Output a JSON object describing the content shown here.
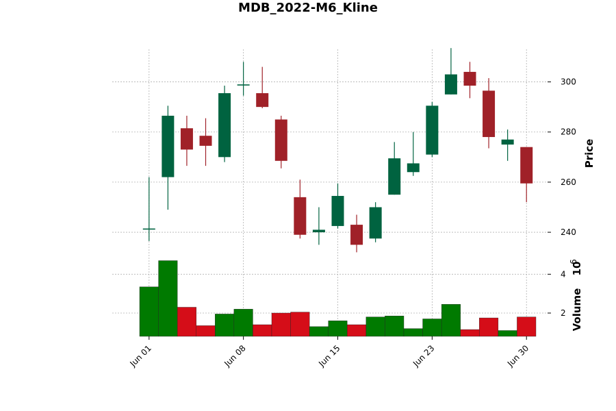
{
  "chart_data": {
    "type": "candlestick",
    "title": "MDB_2022-M6_Kline",
    "ylabel": "Price",
    "volume_label": "Volume",
    "volume_multiplier": "10",
    "volume_exponent": "6",
    "price_ylim": [
      231,
      313
    ],
    "price_ticks": [
      "240",
      "260",
      "280",
      "300"
    ],
    "volume_ylim": [
      0.8,
      5.0
    ],
    "volume_ticks": [
      "2",
      "4"
    ],
    "x_tick_labels": [
      {
        "index": 0,
        "label": "Jun 01"
      },
      {
        "index": 5,
        "label": "Jun 08"
      },
      {
        "index": 10,
        "label": "Jun 15"
      },
      {
        "index": 15,
        "label": "Jun 23"
      },
      {
        "index": 20,
        "label": "Jun 30"
      }
    ],
    "colors": {
      "up_candle": "#006340",
      "down_candle": "#A02128",
      "up_volume": "#007a00",
      "down_volume": "#d50d18"
    },
    "candles": [
      {
        "open": 241.5,
        "high": 262.0,
        "low": 236.5,
        "close": 241.5,
        "volume": 3.35
      },
      {
        "open": 262.0,
        "high": 290.5,
        "low": 249.0,
        "close": 286.5,
        "volume": 4.7
      },
      {
        "open": 281.5,
        "high": 286.5,
        "low": 266.5,
        "close": 273.0,
        "volume": 2.3
      },
      {
        "open": 278.5,
        "high": 285.5,
        "low": 266.5,
        "close": 274.5,
        "volume": 1.35
      },
      {
        "open": 270.0,
        "high": 298.5,
        "low": 268.0,
        "close": 295.5,
        "volume": 1.95
      },
      {
        "open": 299.0,
        "high": 308.0,
        "low": 294.5,
        "close": 299.0,
        "volume": 2.2
      },
      {
        "open": 295.5,
        "high": 306.0,
        "low": 289.5,
        "close": 290.0,
        "volume": 1.4
      },
      {
        "open": 285.0,
        "high": 286.5,
        "low": 265.5,
        "close": 268.5,
        "volume": 2.0
      },
      {
        "open": 254.0,
        "high": 261.0,
        "low": 237.5,
        "close": 239.0,
        "volume": 2.05
      },
      {
        "open": 240.0,
        "high": 250.0,
        "low": 235.0,
        "close": 241.0,
        "volume": 1.3
      },
      {
        "open": 242.5,
        "high": 259.5,
        "low": 241.5,
        "close": 254.5,
        "volume": 1.6
      },
      {
        "open": 243.0,
        "high": 247.0,
        "low": 232.0,
        "close": 235.0,
        "volume": 1.4
      },
      {
        "open": 237.5,
        "high": 252.0,
        "low": 236.0,
        "close": 250.0,
        "volume": 1.8
      },
      {
        "open": 255.0,
        "high": 276.0,
        "low": 255.0,
        "close": 269.5,
        "volume": 1.85
      },
      {
        "open": 264.0,
        "high": 280.0,
        "low": 262.5,
        "close": 267.5,
        "volume": 1.2
      },
      {
        "open": 271.0,
        "high": 292.0,
        "low": 270.0,
        "close": 290.5,
        "volume": 1.7
      },
      {
        "open": 295.0,
        "high": 313.5,
        "low": 295.0,
        "close": 303.0,
        "volume": 2.45
      },
      {
        "open": 304.0,
        "high": 308.0,
        "low": 293.5,
        "close": 298.5,
        "volume": 1.15
      },
      {
        "open": 296.5,
        "high": 301.5,
        "low": 273.5,
        "close": 278.0,
        "volume": 1.75
      },
      {
        "open": 275.0,
        "high": 281.0,
        "low": 268.5,
        "close": 277.0,
        "volume": 1.1
      },
      {
        "open": 274.0,
        "high": 274.0,
        "low": 252.0,
        "close": 259.5,
        "volume": 1.8
      }
    ],
    "grid": true
  }
}
